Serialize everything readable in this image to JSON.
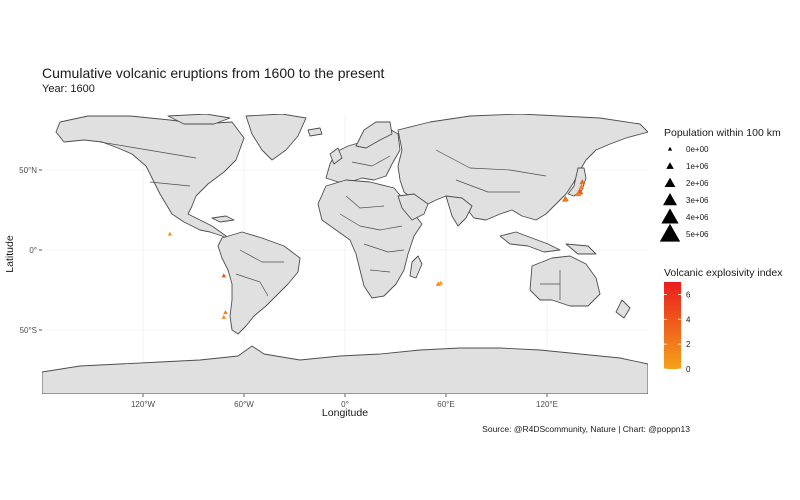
{
  "chart_data": {
    "type": "map",
    "title": "Cumulative volcanic eruptions from 1600 to the present",
    "subtitle": "Year: 1600",
    "caption": "Source: @R4DScommunity, Nature | Chart: @poppn13",
    "xlabel": "Longitude",
    "ylabel": "Latitude",
    "xlim": [
      -180,
      180
    ],
    "ylim": [
      -90,
      85
    ],
    "x_ticks": [
      {
        "value": -120,
        "label": "120°W"
      },
      {
        "value": -60,
        "label": "60°W"
      },
      {
        "value": 0,
        "label": "0°"
      },
      {
        "value": 60,
        "label": "60°E"
      },
      {
        "value": 120,
        "label": "120°E"
      }
    ],
    "y_ticks": [
      {
        "value": 50,
        "label": "50°N"
      },
      {
        "value": 0,
        "label": "0°"
      },
      {
        "value": -50,
        "label": "50°S"
      }
    ],
    "grid": true,
    "colors": {
      "land": "#e0e0e0",
      "border": "#4d4d4d",
      "grid": "#ebebeb",
      "vei_low": "#f6a21a",
      "vei_high": "#ea1c1c"
    },
    "size_legend": {
      "title": "Population within 100 km",
      "entries": [
        "0e+00",
        "1e+06",
        "2e+06",
        "3e+06",
        "4e+06",
        "5e+06"
      ]
    },
    "color_legend": {
      "title": "Volcanic explosivity index",
      "range": [
        0,
        7
      ],
      "ticks": [
        "0",
        "2",
        "4",
        "6"
      ]
    },
    "eruptions": [
      {
        "lon": -104,
        "lat": 10,
        "vei": 1,
        "pop": 0
      },
      {
        "lon": -72,
        "lat": -16,
        "vei": 4,
        "pop": 100000
      },
      {
        "lon": -71,
        "lat": -39,
        "vei": 2,
        "pop": 100000
      },
      {
        "lon": -72,
        "lat": -42,
        "vei": 1,
        "pop": 50000
      },
      {
        "lon": 55.5,
        "lat": -21.2,
        "vei": 1,
        "pop": 300000
      },
      {
        "lon": 57,
        "lat": -20.5,
        "vei": 0,
        "pop": 100000
      },
      {
        "lon": 141,
        "lat": 42.5,
        "vei": 3,
        "pop": 500000
      },
      {
        "lon": 140.5,
        "lat": 39.5,
        "vei": 2,
        "pop": 300000
      },
      {
        "lon": 139.5,
        "lat": 36.5,
        "vei": 4,
        "pop": 800000
      },
      {
        "lon": 138.5,
        "lat": 35.2,
        "vei": 2,
        "pop": 700000
      },
      {
        "lon": 131,
        "lat": 32,
        "vei": 3,
        "pop": 600000
      },
      {
        "lon": 130.5,
        "lat": 31.5,
        "vei": 2,
        "pop": 400000
      }
    ]
  }
}
